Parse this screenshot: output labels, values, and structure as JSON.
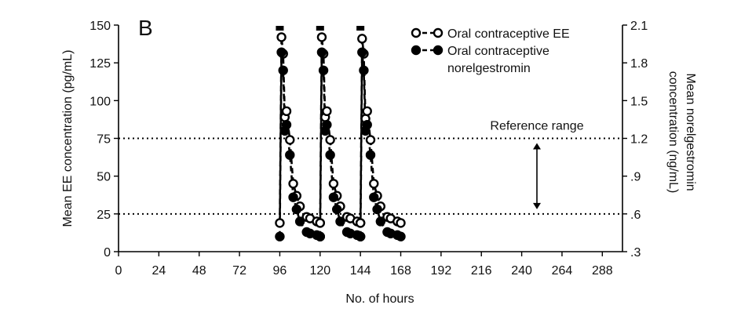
{
  "chart_data": {
    "type": "line",
    "panel_label": "B",
    "xlabel": "No. of hours",
    "ylabel_left": "Mean EE concentration (pg/mL)",
    "ylabel_right": "Mean norelgestromin concentration (ng/mL)",
    "ylabel_right_lines": [
      "Mean norelgestromin",
      "concentration (ng/mL)"
    ],
    "xlim": [
      0,
      300
    ],
    "ylim_left": [
      0,
      150
    ],
    "ylim_right": [
      0.3,
      2.1
    ],
    "x_ticks": [
      "0",
      "24",
      "48",
      "72",
      "96",
      "120",
      "144",
      "168",
      "192",
      "216",
      "240",
      "264",
      "288"
    ],
    "y_ticks_left": [
      "0",
      "25",
      "50",
      "75",
      "100",
      "125",
      "150"
    ],
    "y_ticks_right": [
      ".3",
      ".6",
      ".9",
      "1.2",
      "1.5",
      "1.8",
      "2.1"
    ],
    "reference_lines": [
      25,
      75
    ],
    "reference_label": "Reference range",
    "dosing_markers_x": [
      96,
      120,
      144
    ],
    "legend_position": "top-right",
    "grid": false,
    "series": [
      {
        "name": "Oral contraceptive EE",
        "marker": "open-circle",
        "axis": "left",
        "segments": [
          {
            "x": [
              96,
              97,
              98,
              99,
              100,
              102,
              104,
              106,
              108,
              112,
              114,
              118,
              120
            ],
            "y": [
              19,
              142,
              131,
              89,
              93,
              74,
              45,
              37,
              30,
              23,
              22,
              20,
              19
            ]
          },
          {
            "x": [
              120,
              121,
              122,
              123,
              124,
              126,
              128,
              130,
              132,
              136,
              138,
              142,
              144
            ],
            "y": [
              19,
              142,
              131,
              89,
              93,
              74,
              45,
              37,
              30,
              23,
              22,
              20,
              19
            ]
          },
          {
            "x": [
              144,
              145,
              146,
              147,
              148,
              150,
              152,
              154,
              156,
              160,
              162,
              166,
              168
            ],
            "y": [
              19,
              141,
              131,
              88,
              93,
              74,
              45,
              37,
              30,
              23,
              22,
              20,
              19
            ]
          }
        ]
      },
      {
        "name": "Oral contraceptive norelgestromin",
        "marker": "filled-circle",
        "axis": "left",
        "segments": [
          {
            "x": [
              96,
              97,
              98,
              99,
              100,
              102,
              104,
              106,
              108,
              112,
              114,
              118,
              120
            ],
            "y": [
              10,
              132,
              120,
              80,
              84,
              64,
              36,
              28,
              20,
              13,
              12,
              11,
              10
            ]
          },
          {
            "x": [
              120,
              121,
              122,
              123,
              124,
              126,
              128,
              130,
              132,
              136,
              138,
              142,
              144
            ],
            "y": [
              10,
              132,
              120,
              80,
              84,
              64,
              36,
              28,
              20,
              13,
              12,
              11,
              10
            ]
          },
          {
            "x": [
              144,
              145,
              146,
              147,
              148,
              150,
              152,
              154,
              156,
              160,
              162,
              166,
              168
            ],
            "y": [
              10,
              132,
              120,
              80,
              84,
              64,
              36,
              28,
              20,
              13,
              12,
              11,
              10
            ]
          }
        ]
      }
    ]
  },
  "legend": {
    "items": [
      {
        "lines": [
          "Oral contraceptive EE"
        ],
        "marker": "open-circle"
      },
      {
        "lines": [
          "Oral contraceptive",
          "norelgestromin"
        ],
        "marker": "filled-circle"
      }
    ]
  }
}
